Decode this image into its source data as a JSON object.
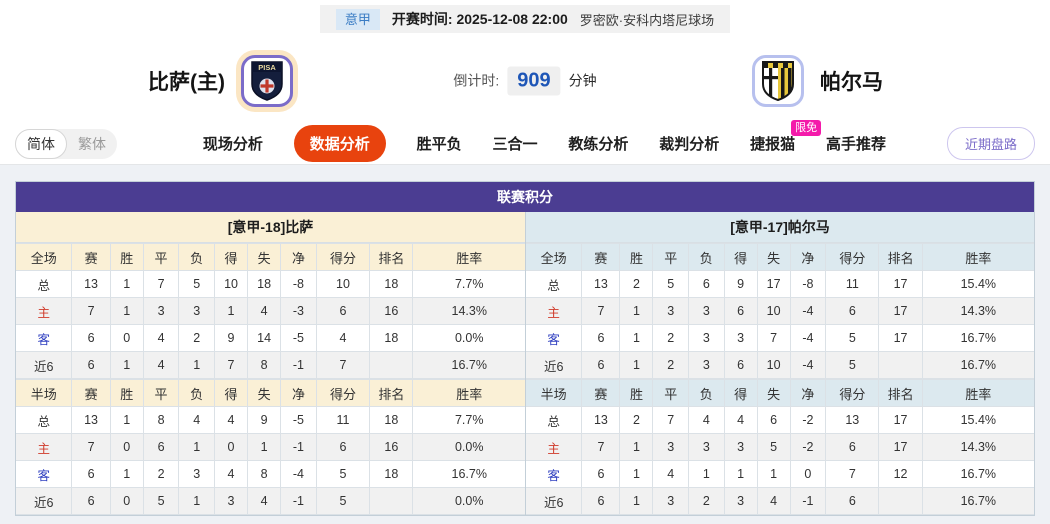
{
  "topbar": {
    "league_badge": "意甲",
    "kickoff_label": "开赛时间:",
    "kickoff_time": "2025-12-08 22:00",
    "venue": "罗密欧·安科内塔尼球场"
  },
  "header": {
    "home_team": "比萨(主)",
    "home_logo_text": "PISA",
    "countdown_label": "倒计时:",
    "countdown_value": "909",
    "countdown_unit": "分钟",
    "away_team": "帕尔马"
  },
  "nav": {
    "lang_simplified": "简体",
    "lang_traditional": "繁体",
    "tabs": [
      {
        "label": "现场分析",
        "active": false
      },
      {
        "label": "数据分析",
        "active": true
      },
      {
        "label": "胜平负",
        "active": false
      },
      {
        "label": "三合一",
        "active": false
      },
      {
        "label": "教练分析",
        "active": false
      },
      {
        "label": "裁判分析",
        "active": false
      },
      {
        "label": "捷报猫",
        "active": false,
        "badge": "限免"
      },
      {
        "label": "高手推荐",
        "active": false
      }
    ],
    "right_button": "近期盘路"
  },
  "table": {
    "title": "联赛积分",
    "left": {
      "team_header": "[意甲-18]比萨",
      "full": {
        "columns": [
          "全场",
          "赛",
          "胜",
          "平",
          "负",
          "得",
          "失",
          "净",
          "得分",
          "排名",
          "胜率"
        ],
        "rows": [
          {
            "label": "总",
            "values": [
              "13",
              "1",
              "7",
              "5",
              "10",
              "18",
              "-8",
              "10",
              "18",
              "7.7%"
            ]
          },
          {
            "label": "主",
            "values": [
              "7",
              "1",
              "3",
              "3",
              "1",
              "4",
              "-3",
              "6",
              "16",
              "14.3%"
            ]
          },
          {
            "label": "客",
            "values": [
              "6",
              "0",
              "4",
              "2",
              "9",
              "14",
              "-5",
              "4",
              "18",
              "0.0%"
            ]
          },
          {
            "label": "近6",
            "values": [
              "6",
              "1",
              "4",
              "1",
              "7",
              "8",
              "-1",
              "7",
              "",
              "16.7%"
            ]
          }
        ]
      },
      "half": {
        "columns": [
          "半场",
          "赛",
          "胜",
          "平",
          "负",
          "得",
          "失",
          "净",
          "得分",
          "排名",
          "胜率"
        ],
        "rows": [
          {
            "label": "总",
            "values": [
              "13",
              "1",
              "8",
              "4",
              "4",
              "9",
              "-5",
              "11",
              "18",
              "7.7%"
            ]
          },
          {
            "label": "主",
            "values": [
              "7",
              "0",
              "6",
              "1",
              "0",
              "1",
              "-1",
              "6",
              "16",
              "0.0%"
            ]
          },
          {
            "label": "客",
            "values": [
              "6",
              "1",
              "2",
              "3",
              "4",
              "8",
              "-4",
              "5",
              "18",
              "16.7%"
            ]
          },
          {
            "label": "近6",
            "values": [
              "6",
              "0",
              "5",
              "1",
              "3",
              "4",
              "-1",
              "5",
              "",
              "0.0%"
            ]
          }
        ]
      }
    },
    "right": {
      "team_header": "[意甲-17]帕尔马",
      "full": {
        "columns": [
          "全场",
          "赛",
          "胜",
          "平",
          "负",
          "得",
          "失",
          "净",
          "得分",
          "排名",
          "胜率"
        ],
        "rows": [
          {
            "label": "总",
            "values": [
              "13",
              "2",
              "5",
              "6",
              "9",
              "17",
              "-8",
              "11",
              "17",
              "15.4%"
            ]
          },
          {
            "label": "主",
            "values": [
              "7",
              "1",
              "3",
              "3",
              "6",
              "10",
              "-4",
              "6",
              "17",
              "14.3%"
            ]
          },
          {
            "label": "客",
            "values": [
              "6",
              "1",
              "2",
              "3",
              "3",
              "7",
              "-4",
              "5",
              "17",
              "16.7%"
            ]
          },
          {
            "label": "近6",
            "values": [
              "6",
              "1",
              "2",
              "3",
              "6",
              "10",
              "-4",
              "5",
              "",
              "16.7%"
            ]
          }
        ]
      },
      "half": {
        "columns": [
          "半场",
          "赛",
          "胜",
          "平",
          "负",
          "得",
          "失",
          "净",
          "得分",
          "排名",
          "胜率"
        ],
        "rows": [
          {
            "label": "总",
            "values": [
              "13",
              "2",
              "7",
              "4",
              "4",
              "6",
              "-2",
              "13",
              "17",
              "15.4%"
            ]
          },
          {
            "label": "主",
            "values": [
              "7",
              "1",
              "3",
              "3",
              "3",
              "5",
              "-2",
              "6",
              "17",
              "14.3%"
            ]
          },
          {
            "label": "客",
            "values": [
              "6",
              "1",
              "4",
              "1",
              "1",
              "1",
              "0",
              "7",
              "12",
              "16.7%"
            ]
          },
          {
            "label": "近6",
            "values": [
              "6",
              "1",
              "3",
              "2",
              "3",
              "4",
              "-1",
              "6",
              "",
              "16.7%"
            ]
          }
        ]
      }
    }
  },
  "colors": {
    "header_purple": "#4b3d92",
    "active_tab": "#e8430e",
    "badge_pink": "#f41aaa",
    "home_cream": "#faf0d6",
    "away_lightblue": "#dce9ef",
    "home_red": "#d03a2a",
    "away_blue": "#2f3fc0",
    "countdown_blue": "#1e56b7",
    "league_blue": "#3a7cc4",
    "purple_btn": "#7b6cc9"
  }
}
